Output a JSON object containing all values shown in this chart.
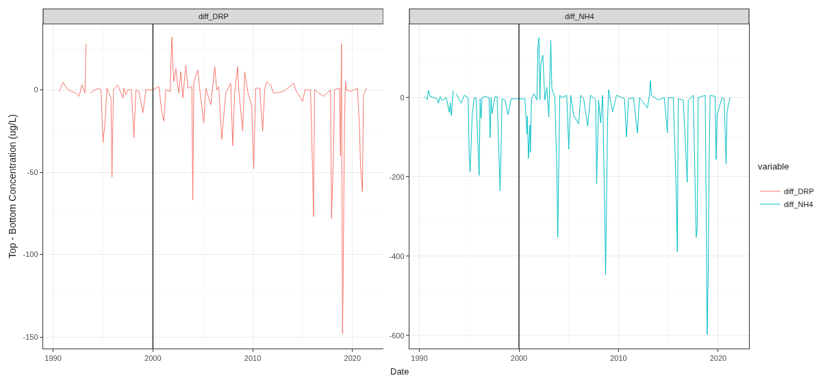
{
  "chart_data": [
    {
      "type": "line",
      "title": "diff_DRP",
      "ylabel": "Top - Bottom Concentration (ug/L)",
      "xlim": [
        1989,
        2023.1
      ],
      "xticks": [
        1990,
        2000,
        2010,
        2020
      ],
      "ylim": [
        -157,
        40
      ],
      "yticks": [
        -150,
        -100,
        -50,
        0
      ],
      "grid": true,
      "legend": "right",
      "ref_lines": [
        {
          "axis": "x",
          "value": 2000,
          "color": "#000000"
        }
      ],
      "series": [
        {
          "name": "diff_DRP",
          "color": "#f8766d",
          "x": [
            1990.6,
            1991.0,
            1991.5,
            1992.3,
            1992.6,
            1992.9,
            1993.2,
            1993.25,
            1993.3,
            1993.5,
            1993.7,
            1994.5,
            1994.8,
            1995.0,
            1995.2,
            1995.4,
            1995.8,
            1995.9,
            1996.0,
            1996.05,
            1996.46,
            1997.0,
            1997.1,
            1997.3,
            1997.5,
            1997.85,
            1998.1,
            1998.3,
            1998.6,
            1999.0,
            1999.3,
            2000.0,
            2000.6,
            2000.9,
            2001.1,
            2001.3,
            2001.75,
            2001.8,
            2001.9,
            2002.0,
            2002.1,
            2002.3,
            2002.5,
            2002.6,
            2002.8,
            2003.0,
            2003.3,
            2003.5,
            2003.9,
            2003.95,
            2004.0,
            2004.1,
            2004.5,
            2004.7,
            2005.1,
            2005.3,
            2005.8,
            2006.2,
            2006.4,
            2006.6,
            2006.9,
            2007.3,
            2007.8,
            2008.0,
            2008.2,
            2008.5,
            2008.6,
            2009.0,
            2009.2,
            2009.5,
            2009.9,
            2010.1,
            2010.3,
            2010.7,
            2011.0,
            2011.2,
            2011.4,
            2011.8,
            2012.1,
            2013.1,
            2014.1,
            2014.3,
            2015.0,
            2015.25,
            2015.8,
            2016.0,
            2016.1,
            2016.2,
            2017.1,
            2017.8,
            2017.85,
            2017.9,
            2018.1,
            2018.2,
            2018.7,
            2018.8,
            2018.9,
            2018.95,
            2019.0,
            2019.06,
            2019.2,
            2019.3,
            2019.4,
            2019.8,
            2020.5,
            2020.7,
            2020.8,
            2021.0,
            2021.1,
            2021.4
          ],
          "values": [
            -1,
            4.5,
            0,
            -2,
            -4,
            3,
            -2,
            15,
            28,
            null,
            -2,
            1,
            0,
            -32,
            -20,
            1,
            -5,
            -53,
            -17,
            0,
            3,
            -5,
            1,
            -3,
            0,
            0,
            -29,
            0,
            -1,
            -14,
            0,
            0,
            2,
            -14,
            -19,
            0,
            -1,
            15,
            32,
            15,
            5,
            13,
            2,
            -2,
            11,
            -5,
            15,
            1,
            2,
            -32,
            -67,
            5,
            12,
            0,
            -20,
            1,
            -9,
            14,
            0,
            2,
            -30,
            -2,
            4,
            -34,
            -1,
            14,
            0,
            -25,
            11,
            -1,
            -10,
            -48,
            1,
            1,
            -25,
            0,
            5,
            3,
            -2,
            -1,
            4,
            0,
            -7,
            0,
            0,
            -48,
            -77,
            0,
            -4,
            0,
            -38,
            -78,
            -38,
            0,
            1,
            -40,
            28,
            -59,
            -148,
            -120,
            -19,
            5,
            0,
            -1,
            1,
            -22,
            -45,
            -62,
            -3,
            1
          ]
        }
      ]
    },
    {
      "type": "line",
      "title": "diff_NH4",
      "xlabel": "Date",
      "legend_title": "variable",
      "xlim": [
        1989,
        2023.1
      ],
      "xticks": [
        1990,
        2000,
        2010,
        2020
      ],
      "ylim": [
        -633,
        186
      ],
      "yticks": [
        -600,
        -400,
        -200,
        0
      ],
      "grid": true,
      "legend": "right",
      "ref_lines": [
        {
          "axis": "x",
          "value": 2000,
          "color": "#000000"
        }
      ],
      "series": [
        {
          "name": "diff_NH4",
          "color": "#00bfc4",
          "x": [
            1990.5,
            1990.8,
            1990.9,
            1991.1,
            1991.8,
            1991.9,
            1992.1,
            1992.3,
            1992.7,
            1993.0,
            1993.1,
            1993.2,
            1993.4,
            1993.55,
            1993.7,
            1994.2,
            1994.5,
            1994.9,
            1995.0,
            1995.1,
            1995.3,
            1995.5,
            1995.7,
            1996.0,
            1996.1,
            1996.2,
            1996.3,
            1996.6,
            1997.0,
            1997.1,
            1997.2,
            1997.3,
            1997.6,
            1997.8,
            1998.0,
            1998.1,
            1998.2,
            1998.3,
            1998.6,
            1998.9,
            1999.2,
            2000.0,
            2000.6,
            2000.8,
            2000.85,
            2000.95,
            2001.1,
            2001.15,
            2001.25,
            2001.5,
            2001.8,
            2001.9,
            2002.0,
            2002.1,
            2002.2,
            2002.4,
            2002.6,
            2002.8,
            2003.0,
            2003.2,
            2003.3,
            2003.6,
            2003.8,
            2003.9,
            2004.1,
            2004.3,
            2004.8,
            2005.0,
            2005.2,
            2005.5,
            2006.0,
            2006.2,
            2006.5,
            2006.9,
            2007.2,
            2007.7,
            2007.8,
            2008.0,
            2008.2,
            2008.4,
            2008.6,
            2008.7,
            2008.9,
            2009.0,
            2009.4,
            2009.8,
            2010.6,
            2010.8,
            2011.0,
            2011.5,
            2011.9,
            2012.1,
            2012.9,
            2013.1,
            2013.2,
            2013.3,
            2014.0,
            2014.6,
            2014.9,
            2015.0,
            2015.5,
            2015.8,
            2015.9,
            2016.0,
            2016.5,
            2016.9,
            2017.0,
            2017.5,
            2017.8,
            2017.9,
            2018.0,
            2018.7,
            2018.8,
            2018.9,
            2019.0,
            2019.1,
            2019.2,
            2019.7,
            2019.8,
            2019.9,
            2020.4,
            2020.6,
            2020.8,
            2020.9,
            2021.2
          ],
          "values": [
            3,
            -5,
            18,
            3,
            -3,
            -14,
            3,
            -7,
            0,
            -37,
            -12,
            -45,
            18,
            null,
            10,
            -14,
            6,
            0,
            -150,
            -187,
            -46,
            -1,
            -1,
            -196,
            -3,
            -52,
            0,
            3,
            0,
            -101,
            0,
            -40,
            3,
            3,
            -150,
            -235,
            -138,
            -3,
            -6,
            -43,
            -3,
            -3,
            -3,
            -92,
            -46,
            -153,
            -69,
            -138,
            -3,
            10,
            -6,
            127,
            151,
            -6,
            86,
            107,
            -6,
            26,
            -49,
            144,
            23,
            1,
            -173,
            -352,
            6,
            0,
            6,
            -130,
            6,
            -45,
            -66,
            6,
            -3,
            -72,
            6,
            -6,
            -217,
            -6,
            -64,
            6,
            -266,
            -447,
            -58,
            20,
            -35,
            6,
            -3,
            -99,
            -3,
            0,
            -89,
            0,
            -26,
            6,
            43,
            6,
            -6,
            0,
            -89,
            0,
            0,
            -245,
            -389,
            -3,
            -6,
            -213,
            -6,
            6,
            -352,
            -329,
            0,
            6,
            -277,
            -597,
            -450,
            -150,
            6,
            3,
            -156,
            -43,
            0,
            -3,
            -168,
            -35,
            1
          ]
        }
      ]
    }
  ]
}
